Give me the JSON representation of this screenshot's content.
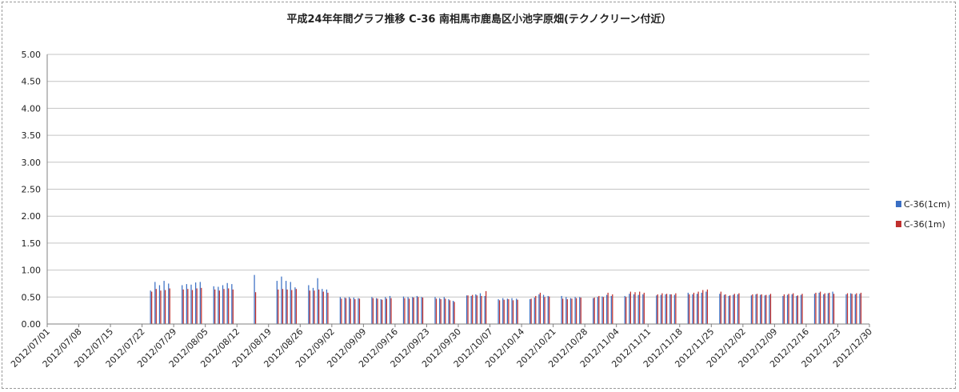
{
  "chart_data": {
    "type": "bar",
    "title": "平成24年年間グラフ推移 C-36 南相馬市鹿島区小池字原畑(テクノクリーン付近）",
    "ylim": [
      0,
      5
    ],
    "yticks": [
      "0.00",
      "0.50",
      "1.00",
      "1.50",
      "2.00",
      "2.50",
      "3.00",
      "3.50",
      "4.00",
      "4.50",
      "5.00"
    ],
    "xlim": [
      "2012/07/01",
      "2012/12/30"
    ],
    "x_tick_labels": [
      "2012/07/01",
      "2012/07/08",
      "2012/07/15",
      "2012/07/22",
      "2012/07/29",
      "2012/08/05",
      "2012/08/12",
      "2012/08/19",
      "2012/08/26",
      "2012/09/02",
      "2012/09/09",
      "2012/09/16",
      "2012/09/23",
      "2012/09/30",
      "2012/10/07",
      "2012/10/14",
      "2012/10/21",
      "2012/10/28",
      "2012/11/04",
      "2012/11/11",
      "2012/11/18",
      "2012/11/25",
      "2012/12/02",
      "2012/12/09",
      "2012/12/16",
      "2012/12/23",
      "2012/12/30"
    ],
    "grid": "horizontal",
    "legend_position": "right",
    "series": [
      {
        "name": "C-36(1cm)",
        "color": "#3a6fc4",
        "points": [
          [
            "2012/07/24",
            0.62
          ],
          [
            "2012/07/25",
            0.78
          ],
          [
            "2012/07/26",
            0.72
          ],
          [
            "2012/07/27",
            0.8
          ],
          [
            "2012/07/28",
            0.75
          ],
          [
            "2012/07/31",
            0.72
          ],
          [
            "2012/08/01",
            0.74
          ],
          [
            "2012/08/02",
            0.73
          ],
          [
            "2012/08/03",
            0.77
          ],
          [
            "2012/08/04",
            0.78
          ],
          [
            "2012/08/07",
            0.7
          ],
          [
            "2012/08/08",
            0.69
          ],
          [
            "2012/08/09",
            0.72
          ],
          [
            "2012/08/10",
            0.76
          ],
          [
            "2012/08/11",
            0.74
          ],
          [
            "2012/08/16",
            0.91
          ],
          [
            "2012/08/21",
            0.8
          ],
          [
            "2012/08/22",
            0.88
          ],
          [
            "2012/08/23",
            0.8
          ],
          [
            "2012/08/24",
            0.78
          ],
          [
            "2012/08/25",
            0.68
          ],
          [
            "2012/08/28",
            0.72
          ],
          [
            "2012/08/29",
            0.67
          ],
          [
            "2012/08/30",
            0.85
          ],
          [
            "2012/08/31",
            0.65
          ],
          [
            "2012/09/01",
            0.64
          ],
          [
            "2012/09/04",
            0.5
          ],
          [
            "2012/09/05",
            0.49
          ],
          [
            "2012/09/06",
            0.5
          ],
          [
            "2012/09/07",
            0.49
          ],
          [
            "2012/09/08",
            0.48
          ],
          [
            "2012/09/11",
            0.5
          ],
          [
            "2012/09/12",
            0.48
          ],
          [
            "2012/09/13",
            0.46
          ],
          [
            "2012/09/14",
            0.5
          ],
          [
            "2012/09/15",
            0.52
          ],
          [
            "2012/09/18",
            0.51
          ],
          [
            "2012/09/19",
            0.5
          ],
          [
            "2012/09/20",
            0.5
          ],
          [
            "2012/09/21",
            0.52
          ],
          [
            "2012/09/22",
            0.5
          ],
          [
            "2012/09/25",
            0.5
          ],
          [
            "2012/09/26",
            0.48
          ],
          [
            "2012/09/27",
            0.5
          ],
          [
            "2012/09/28",
            0.46
          ],
          [
            "2012/09/29",
            0.43
          ],
          [
            "2012/10/02",
            0.53
          ],
          [
            "2012/10/03",
            0.52
          ],
          [
            "2012/10/04",
            0.55
          ],
          [
            "2012/10/05",
            0.57
          ],
          [
            "2012/10/06",
            0.52
          ],
          [
            "2012/10/09",
            0.46
          ],
          [
            "2012/10/10",
            0.48
          ],
          [
            "2012/10/11",
            0.47
          ],
          [
            "2012/10/12",
            0.48
          ],
          [
            "2012/10/13",
            0.47
          ],
          [
            "2012/10/16",
            0.46
          ],
          [
            "2012/10/17",
            0.49
          ],
          [
            "2012/10/18",
            0.55
          ],
          [
            "2012/10/19",
            0.54
          ],
          [
            "2012/10/20",
            0.52
          ],
          [
            "2012/10/23",
            0.52
          ],
          [
            "2012/10/24",
            0.5
          ],
          [
            "2012/10/25",
            0.48
          ],
          [
            "2012/10/26",
            0.5
          ],
          [
            "2012/10/27",
            0.5
          ],
          [
            "2012/10/30",
            0.48
          ],
          [
            "2012/10/31",
            0.5
          ],
          [
            "2012/11/01",
            0.51
          ],
          [
            "2012/11/02",
            0.54
          ],
          [
            "2012/11/03",
            0.52
          ],
          [
            "2012/11/06",
            0.52
          ],
          [
            "2012/11/07",
            0.56
          ],
          [
            "2012/11/08",
            0.55
          ],
          [
            "2012/11/09",
            0.54
          ],
          [
            "2012/11/10",
            0.55
          ],
          [
            "2012/11/13",
            0.53
          ],
          [
            "2012/11/14",
            0.54
          ],
          [
            "2012/11/15",
            0.55
          ],
          [
            "2012/11/16",
            0.55
          ],
          [
            "2012/11/17",
            0.54
          ],
          [
            "2012/11/20",
            0.58
          ],
          [
            "2012/11/21",
            0.55
          ],
          [
            "2012/11/22",
            0.56
          ],
          [
            "2012/11/23",
            0.58
          ],
          [
            "2012/11/24",
            0.6
          ],
          [
            "2012/11/27",
            0.56
          ],
          [
            "2012/11/28",
            0.54
          ],
          [
            "2012/11/29",
            0.52
          ],
          [
            "2012/11/30",
            0.54
          ],
          [
            "2012/12/01",
            0.55
          ],
          [
            "2012/12/04",
            0.53
          ],
          [
            "2012/12/05",
            0.55
          ],
          [
            "2012/12/06",
            0.54
          ],
          [
            "2012/12/07",
            0.53
          ],
          [
            "2012/12/08",
            0.54
          ],
          [
            "2012/12/11",
            0.52
          ],
          [
            "2012/12/12",
            0.54
          ],
          [
            "2012/12/13",
            0.55
          ],
          [
            "2012/12/14",
            0.52
          ],
          [
            "2012/12/15",
            0.54
          ],
          [
            "2012/12/18",
            0.56
          ],
          [
            "2012/12/19",
            0.58
          ],
          [
            "2012/12/20",
            0.55
          ],
          [
            "2012/12/21",
            0.57
          ],
          [
            "2012/12/22",
            0.6
          ],
          [
            "2012/12/25",
            0.55
          ],
          [
            "2012/12/26",
            0.57
          ],
          [
            "2012/12/27",
            0.55
          ],
          [
            "2012/12/28",
            0.56
          ]
        ]
      },
      {
        "name": "C-36(1m)",
        "color": "#c0302e",
        "points": [
          [
            "2012/07/24",
            0.6
          ],
          [
            "2012/07/25",
            0.65
          ],
          [
            "2012/07/26",
            0.62
          ],
          [
            "2012/07/27",
            0.63
          ],
          [
            "2012/07/28",
            0.66
          ],
          [
            "2012/07/31",
            0.64
          ],
          [
            "2012/08/01",
            0.65
          ],
          [
            "2012/08/02",
            0.63
          ],
          [
            "2012/08/03",
            0.66
          ],
          [
            "2012/08/04",
            0.67
          ],
          [
            "2012/08/07",
            0.64
          ],
          [
            "2012/08/08",
            0.62
          ],
          [
            "2012/08/09",
            0.65
          ],
          [
            "2012/08/10",
            0.66
          ],
          [
            "2012/08/11",
            0.64
          ],
          [
            "2012/08/16",
            0.59
          ],
          [
            "2012/08/21",
            0.64
          ],
          [
            "2012/08/22",
            0.65
          ],
          [
            "2012/08/23",
            0.64
          ],
          [
            "2012/08/24",
            0.63
          ],
          [
            "2012/08/25",
            0.65
          ],
          [
            "2012/08/28",
            0.62
          ],
          [
            "2012/08/29",
            0.62
          ],
          [
            "2012/08/30",
            0.64
          ],
          [
            "2012/08/31",
            0.6
          ],
          [
            "2012/09/01",
            0.58
          ],
          [
            "2012/09/04",
            0.47
          ],
          [
            "2012/09/05",
            0.48
          ],
          [
            "2012/09/06",
            0.47
          ],
          [
            "2012/09/07",
            0.46
          ],
          [
            "2012/09/08",
            0.47
          ],
          [
            "2012/09/11",
            0.48
          ],
          [
            "2012/09/12",
            0.47
          ],
          [
            "2012/09/13",
            0.45
          ],
          [
            "2012/09/14",
            0.47
          ],
          [
            "2012/09/15",
            0.48
          ],
          [
            "2012/09/18",
            0.48
          ],
          [
            "2012/09/19",
            0.47
          ],
          [
            "2012/09/20",
            0.49
          ],
          [
            "2012/09/21",
            0.5
          ],
          [
            "2012/09/22",
            0.49
          ],
          [
            "2012/09/25",
            0.47
          ],
          [
            "2012/09/26",
            0.46
          ],
          [
            "2012/09/27",
            0.47
          ],
          [
            "2012/09/28",
            0.44
          ],
          [
            "2012/09/29",
            0.41
          ],
          [
            "2012/10/02",
            0.53
          ],
          [
            "2012/10/03",
            0.54
          ],
          [
            "2012/10/04",
            0.53
          ],
          [
            "2012/10/05",
            0.52
          ],
          [
            "2012/10/06",
            0.61
          ],
          [
            "2012/10/09",
            0.44
          ],
          [
            "2012/10/10",
            0.45
          ],
          [
            "2012/10/11",
            0.46
          ],
          [
            "2012/10/12",
            0.44
          ],
          [
            "2012/10/13",
            0.45
          ],
          [
            "2012/10/16",
            0.47
          ],
          [
            "2012/10/17",
            0.52
          ],
          [
            "2012/10/18",
            0.58
          ],
          [
            "2012/10/19",
            0.5
          ],
          [
            "2012/10/20",
            0.51
          ],
          [
            "2012/10/23",
            0.47
          ],
          [
            "2012/10/24",
            0.46
          ],
          [
            "2012/10/25",
            0.47
          ],
          [
            "2012/10/26",
            0.48
          ],
          [
            "2012/10/27",
            0.49
          ],
          [
            "2012/10/30",
            0.49
          ],
          [
            "2012/10/31",
            0.52
          ],
          [
            "2012/11/01",
            0.5
          ],
          [
            "2012/11/02",
            0.58
          ],
          [
            "2012/11/03",
            0.55
          ],
          [
            "2012/11/06",
            0.5
          ],
          [
            "2012/11/07",
            0.6
          ],
          [
            "2012/11/08",
            0.59
          ],
          [
            "2012/11/09",
            0.6
          ],
          [
            "2012/11/10",
            0.58
          ],
          [
            "2012/11/13",
            0.55
          ],
          [
            "2012/11/14",
            0.57
          ],
          [
            "2012/11/15",
            0.56
          ],
          [
            "2012/11/16",
            0.55
          ],
          [
            "2012/11/17",
            0.57
          ],
          [
            "2012/11/20",
            0.55
          ],
          [
            "2012/11/21",
            0.58
          ],
          [
            "2012/11/22",
            0.6
          ],
          [
            "2012/11/23",
            0.63
          ],
          [
            "2012/11/24",
            0.64
          ],
          [
            "2012/11/27",
            0.6
          ],
          [
            "2012/11/28",
            0.55
          ],
          [
            "2012/11/29",
            0.53
          ],
          [
            "2012/11/30",
            0.56
          ],
          [
            "2012/12/01",
            0.57
          ],
          [
            "2012/12/04",
            0.55
          ],
          [
            "2012/12/05",
            0.56
          ],
          [
            "2012/12/06",
            0.55
          ],
          [
            "2012/12/07",
            0.54
          ],
          [
            "2012/12/08",
            0.56
          ],
          [
            "2012/12/11",
            0.55
          ],
          [
            "2012/12/12",
            0.56
          ],
          [
            "2012/12/13",
            0.57
          ],
          [
            "2012/12/14",
            0.53
          ],
          [
            "2012/12/15",
            0.56
          ],
          [
            "2012/12/18",
            0.58
          ],
          [
            "2012/12/19",
            0.6
          ],
          [
            "2012/12/20",
            0.57
          ],
          [
            "2012/12/21",
            0.58
          ],
          [
            "2012/12/22",
            0.56
          ],
          [
            "2012/12/25",
            0.57
          ],
          [
            "2012/12/26",
            0.56
          ],
          [
            "2012/12/27",
            0.57
          ],
          [
            "2012/12/28",
            0.58
          ]
        ]
      }
    ]
  }
}
